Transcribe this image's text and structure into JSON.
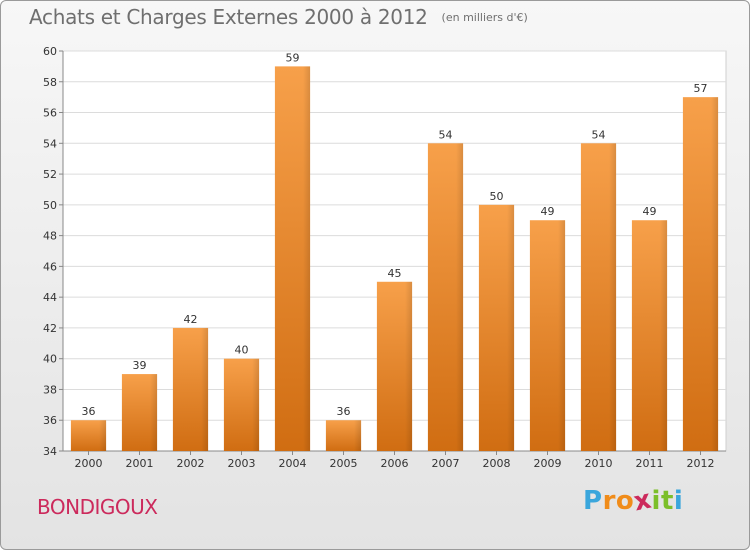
{
  "title": "Achats et Charges Externes 2000 à 2012",
  "unit": "(en milliers d'€)",
  "commune": "BONDIGOUX",
  "logo": {
    "letters": [
      "P",
      "r",
      "o",
      "x",
      "i",
      "t",
      "i"
    ],
    "colors": [
      "#3aa6dc",
      "#f08c1a",
      "#f08c1a",
      "#cc2a5c",
      "#7cbf2a",
      "#7cbf2a",
      "#3aa6dc"
    ]
  },
  "chart_data": {
    "type": "bar",
    "categories": [
      "2000",
      "2001",
      "2002",
      "2003",
      "2004",
      "2005",
      "2006",
      "2007",
      "2008",
      "2009",
      "2010",
      "2011",
      "2012"
    ],
    "values": [
      36,
      39,
      42,
      40,
      59,
      36,
      45,
      54,
      50,
      49,
      54,
      49,
      57
    ],
    "ylim": [
      34,
      60
    ],
    "yticks": [
      34,
      36,
      38,
      40,
      42,
      44,
      46,
      48,
      50,
      52,
      54,
      56,
      58,
      60
    ],
    "grid": true,
    "bar_color": "#f28a2a"
  }
}
